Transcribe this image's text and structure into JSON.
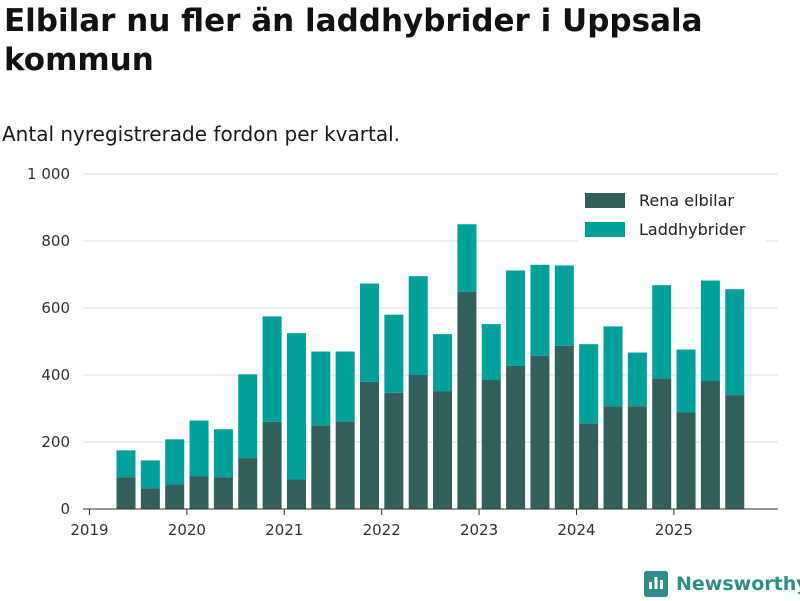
{
  "header": {
    "title": "Elbilar nu fler än laddhybrider i Uppsala kommun",
    "subtitle": "Antal nyregistrerade fordon per kvartal."
  },
  "brand": {
    "name": "Newsworthy"
  },
  "colors": {
    "electric": "#335f5a",
    "hybrid": "#00a19a",
    "grid": "#dcdcdc",
    "axis": "#333333",
    "brand": "#2f8f88"
  },
  "chart_data": {
    "type": "bar",
    "stacked": true,
    "title": "Elbilar nu fler än laddhybrider i Uppsala kommun",
    "subtitle": "Antal nyregistrerade fordon per kvartal.",
    "xlabel": "",
    "ylabel": "",
    "ylim": [
      0,
      1000
    ],
    "yticks": [
      0,
      200,
      400,
      600,
      800,
      1000
    ],
    "ytick_labels": [
      "0",
      "200",
      "400",
      "600",
      "800",
      "1 000"
    ],
    "xtick_labels": [
      "2019",
      "2020",
      "2021",
      "2022",
      "2023",
      "2024",
      "2025"
    ],
    "grid": true,
    "legend_position": "top-right",
    "categories": [
      "2019 Q2",
      "2019 Q3",
      "2019 Q4",
      "2020 Q1",
      "2020 Q2",
      "2020 Q3",
      "2020 Q4",
      "2021 Q1",
      "2021 Q2",
      "2021 Q3",
      "2021 Q4",
      "2022 Q1",
      "2022 Q2",
      "2022 Q3",
      "2022 Q4",
      "2023 Q1",
      "2023 Q2",
      "2023 Q3",
      "2023 Q4",
      "2024 Q1",
      "2024 Q2",
      "2024 Q3",
      "2024 Q4",
      "2025 Q1",
      "2025 Q2",
      "2025 Q3"
    ],
    "series": [
      {
        "name": "Rena elbilar",
        "values": [
          95,
          62,
          73,
          97,
          95,
          152,
          260,
          88,
          250,
          262,
          380,
          347,
          400,
          352,
          648,
          385,
          427,
          457,
          487,
          255,
          307,
          307,
          390,
          288,
          382,
          340
        ]
      },
      {
        "name": "Laddhybrider",
        "values": [
          80,
          83,
          135,
          167,
          143,
          250,
          315,
          437,
          220,
          208,
          293,
          233,
          295,
          170,
          202,
          167,
          285,
          272,
          240,
          237,
          238,
          160,
          278,
          188,
          300,
          316
        ]
      }
    ]
  }
}
